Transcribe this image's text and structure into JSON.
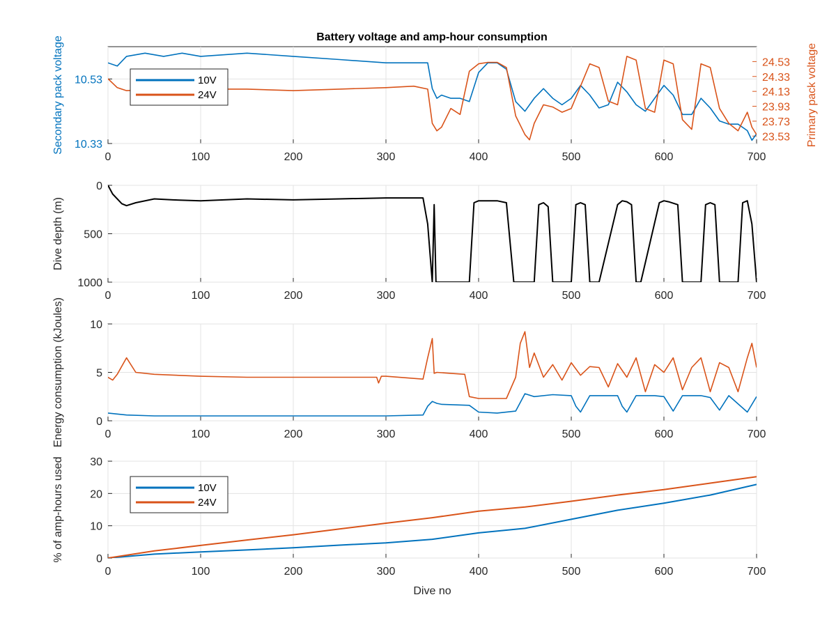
{
  "figure": {
    "title": "Battery voltage and amp-hour consumption",
    "colors": {
      "blue": "#0072bd",
      "orange": "#d95319",
      "black": "#000000"
    }
  },
  "chart_data": [
    {
      "type": "line",
      "title": "Battery voltage and amp-hour consumption",
      "xlabel": "",
      "ylabel": "Secondary pack voltage",
      "ylabel_right": "Primary pack voltage",
      "xlim": [
        0,
        700
      ],
      "ylim": [
        10.33,
        10.63
      ],
      "ylim_right": [
        23.43,
        24.73
      ],
      "xticks": [
        "0",
        "100",
        "200",
        "300",
        "400",
        "500",
        "600",
        "700"
      ],
      "yticks": [
        "10.33",
        "10.53"
      ],
      "yticks_right": [
        "23.53",
        "23.73",
        "23.93",
        "24.13",
        "24.33",
        "24.53"
      ],
      "legend": {
        "placement": "top-left",
        "entries": [
          "10V",
          "24V"
        ]
      },
      "grid": true,
      "series": [
        {
          "name": "10V",
          "axis": "left",
          "color": "#0072bd",
          "x": [
            0,
            10,
            20,
            40,
            60,
            80,
            100,
            150,
            200,
            250,
            300,
            330,
            345,
            350,
            355,
            360,
            370,
            380,
            390,
            400,
            410,
            420,
            430,
            440,
            450,
            460,
            470,
            480,
            490,
            500,
            510,
            520,
            530,
            540,
            550,
            560,
            570,
            580,
            590,
            600,
            610,
            620,
            630,
            640,
            650,
            660,
            670,
            680,
            690,
            695,
            700
          ],
          "y": [
            10.58,
            10.57,
            10.6,
            10.61,
            10.6,
            10.61,
            10.6,
            10.61,
            10.6,
            10.59,
            10.58,
            10.58,
            10.58,
            10.5,
            10.47,
            10.48,
            10.47,
            10.47,
            10.46,
            10.55,
            10.58,
            10.58,
            10.56,
            10.46,
            10.43,
            10.47,
            10.5,
            10.47,
            10.45,
            10.47,
            10.51,
            10.48,
            10.44,
            10.45,
            10.52,
            10.49,
            10.45,
            10.43,
            10.47,
            10.51,
            10.48,
            10.42,
            10.42,
            10.47,
            10.44,
            10.4,
            10.39,
            10.39,
            10.37,
            10.34,
            10.36
          ]
        },
        {
          "name": "24V",
          "axis": "right",
          "color": "#d95319",
          "x": [
            0,
            10,
            20,
            40,
            60,
            80,
            100,
            150,
            200,
            250,
            300,
            330,
            345,
            350,
            355,
            360,
            370,
            380,
            390,
            400,
            410,
            420,
            430,
            440,
            450,
            455,
            460,
            470,
            480,
            490,
            500,
            510,
            520,
            530,
            540,
            550,
            560,
            570,
            580,
            590,
            600,
            610,
            620,
            630,
            640,
            650,
            660,
            670,
            680,
            690,
            695,
            700
          ],
          "y": [
            24.3,
            24.18,
            24.14,
            24.15,
            24.16,
            24.17,
            24.16,
            24.16,
            24.14,
            24.16,
            24.18,
            24.2,
            24.16,
            23.7,
            23.6,
            23.65,
            23.9,
            23.82,
            24.4,
            24.5,
            24.52,
            24.52,
            24.45,
            23.8,
            23.55,
            23.48,
            23.7,
            23.95,
            23.92,
            23.85,
            23.9,
            24.2,
            24.5,
            24.45,
            24.0,
            23.95,
            24.6,
            24.55,
            23.9,
            23.85,
            24.55,
            24.5,
            23.75,
            23.62,
            24.5,
            24.45,
            23.9,
            23.7,
            23.6,
            23.85,
            23.65,
            23.55
          ]
        }
      ]
    },
    {
      "type": "line",
      "title": "",
      "xlabel": "",
      "ylabel": "Dive depth (m)",
      "xlim": [
        0,
        700
      ],
      "ylim": [
        0,
        1000
      ],
      "y_reversed": true,
      "xticks": [
        "0",
        "100",
        "200",
        "300",
        "400",
        "500",
        "600",
        "700"
      ],
      "yticks": [
        "0",
        "500",
        "1000"
      ],
      "grid": true,
      "series": [
        {
          "color": "#000000",
          "x": [
            0,
            5,
            15,
            20,
            30,
            50,
            70,
            100,
            150,
            200,
            250,
            300,
            340,
            345,
            350,
            352,
            354,
            356,
            390,
            395,
            400,
            420,
            430,
            438,
            442,
            460,
            465,
            470,
            475,
            480,
            485,
            500,
            505,
            510,
            515,
            520,
            525,
            530,
            550,
            555,
            560,
            565,
            570,
            575,
            595,
            600,
            605,
            615,
            620,
            640,
            645,
            650,
            655,
            660,
            680,
            685,
            690,
            695,
            700
          ],
          "y": [
            0,
            90,
            190,
            210,
            180,
            140,
            150,
            160,
            140,
            150,
            140,
            130,
            130,
            400,
            1000,
            200,
            1000,
            1000,
            1000,
            180,
            160,
            160,
            180,
            1000,
            1000,
            1000,
            200,
            180,
            220,
            1000,
            1000,
            1000,
            200,
            180,
            200,
            1000,
            1000,
            1000,
            200,
            160,
            170,
            200,
            1000,
            1000,
            180,
            160,
            170,
            200,
            1000,
            1000,
            200,
            180,
            200,
            1000,
            1000,
            180,
            160,
            400,
            1000
          ]
        }
      ]
    },
    {
      "type": "line",
      "title": "",
      "xlabel": "",
      "ylabel": "Energy consumption (kJoules)",
      "xlim": [
        0,
        700
      ],
      "ylim": [
        0,
        10
      ],
      "xticks": [
        "0",
        "100",
        "200",
        "300",
        "400",
        "500",
        "600",
        "700"
      ],
      "yticks": [
        "0",
        "5",
        "10"
      ],
      "grid": true,
      "series": [
        {
          "name": "10V",
          "color": "#0072bd",
          "x": [
            0,
            20,
            50,
            100,
            150,
            200,
            250,
            300,
            340,
            345,
            350,
            355,
            360,
            390,
            400,
            420,
            440,
            450,
            460,
            480,
            500,
            505,
            510,
            520,
            540,
            550,
            555,
            560,
            570,
            590,
            600,
            610,
            620,
            640,
            650,
            660,
            670,
            690,
            700
          ],
          "y": [
            0.8,
            0.6,
            0.5,
            0.5,
            0.5,
            0.5,
            0.5,
            0.5,
            0.6,
            1.5,
            2.0,
            1.8,
            1.7,
            1.6,
            0.9,
            0.8,
            1.0,
            2.8,
            2.5,
            2.7,
            2.6,
            1.5,
            0.9,
            2.6,
            2.6,
            2.6,
            1.5,
            0.9,
            2.6,
            2.6,
            2.5,
            1.0,
            2.6,
            2.6,
            2.4,
            1.1,
            2.6,
            0.9,
            2.5
          ]
        },
        {
          "name": "24V",
          "color": "#d95319",
          "x": [
            0,
            5,
            10,
            20,
            30,
            50,
            100,
            150,
            200,
            250,
            290,
            292,
            295,
            300,
            340,
            345,
            350,
            352,
            355,
            370,
            385,
            390,
            400,
            420,
            430,
            440,
            445,
            450,
            455,
            460,
            470,
            480,
            490,
            500,
            510,
            520,
            530,
            540,
            550,
            560,
            570,
            580,
            590,
            600,
            610,
            620,
            630,
            640,
            650,
            660,
            670,
            680,
            690,
            695,
            700
          ],
          "y": [
            4.5,
            4.2,
            4.8,
            6.5,
            5.0,
            4.8,
            4.6,
            4.5,
            4.5,
            4.5,
            4.5,
            3.9,
            4.6,
            4.6,
            4.3,
            6.5,
            8.5,
            4.9,
            5.0,
            4.9,
            4.8,
            2.5,
            2.3,
            2.3,
            2.3,
            4.5,
            8.0,
            9.2,
            5.5,
            7.0,
            4.5,
            5.8,
            4.2,
            6.0,
            4.7,
            5.6,
            5.5,
            3.5,
            5.9,
            4.5,
            6.5,
            3.0,
            5.8,
            5.0,
            6.5,
            3.2,
            5.5,
            6.5,
            3.0,
            6.0,
            5.5,
            3.0,
            6.5,
            8.0,
            5.5
          ]
        }
      ]
    },
    {
      "type": "line",
      "title": "",
      "xlabel": "Dive no",
      "ylabel": "% of amp-hours used",
      "xlim": [
        0,
        700
      ],
      "ylim": [
        0,
        30
      ],
      "xticks": [
        "0",
        "100",
        "200",
        "300",
        "400",
        "500",
        "600",
        "700"
      ],
      "yticks": [
        "0",
        "10",
        "20",
        "30"
      ],
      "legend": {
        "placement": "top-left",
        "entries": [
          "10V",
          "24V"
        ]
      },
      "grid": true,
      "series": [
        {
          "name": "10V",
          "color": "#0072bd",
          "x": [
            0,
            50,
            100,
            150,
            200,
            250,
            300,
            350,
            400,
            450,
            500,
            550,
            600,
            650,
            700
          ],
          "y": [
            0,
            1.2,
            1.9,
            2.5,
            3.2,
            4.0,
            4.7,
            5.8,
            7.8,
            9.2,
            12.0,
            14.8,
            17.0,
            19.5,
            22.8
          ]
        },
        {
          "name": "24V",
          "color": "#d95319",
          "x": [
            0,
            50,
            100,
            150,
            200,
            250,
            300,
            350,
            400,
            450,
            500,
            550,
            600,
            650,
            700
          ],
          "y": [
            0,
            2.2,
            3.9,
            5.6,
            7.2,
            9.0,
            10.8,
            12.5,
            14.5,
            15.8,
            17.6,
            19.5,
            21.2,
            23.2,
            25.2
          ]
        }
      ]
    }
  ]
}
